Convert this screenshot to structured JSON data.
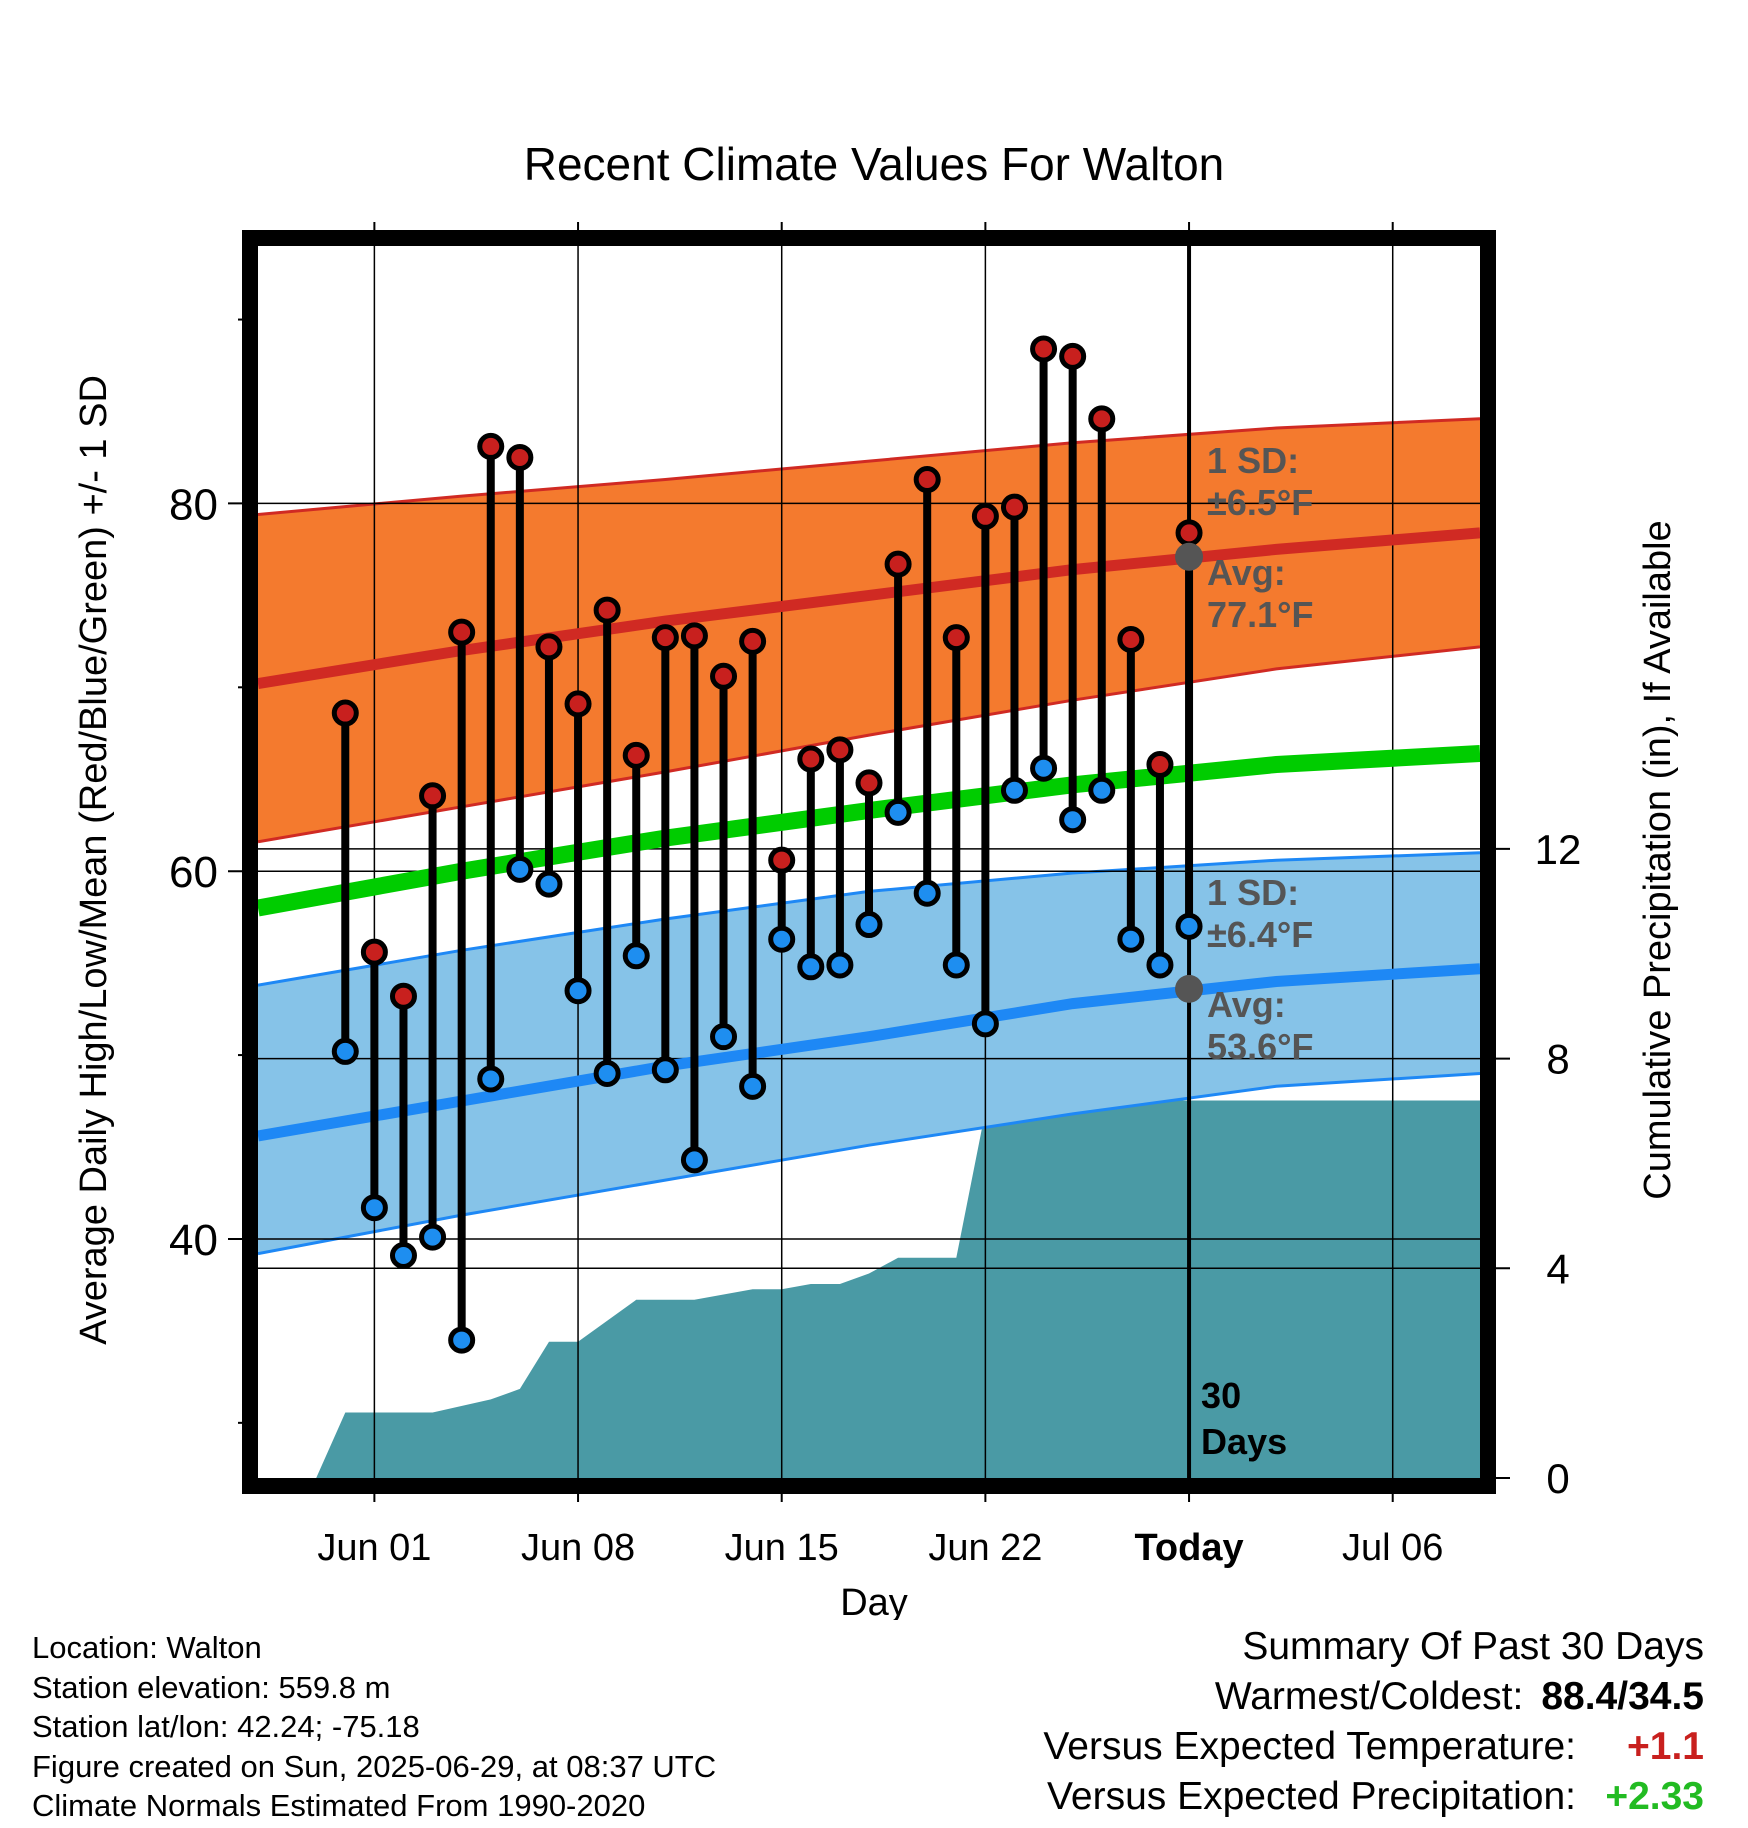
{
  "chart_data": {
    "type": "line",
    "title": "Recent Climate Values For Walton",
    "xlabel": "Day",
    "ylabel": "Average Daily High/Low/Mean (Red/Blue/Green) +/- 1 SD",
    "y2label": "Cumulative Precipitation (in), If Available",
    "x_ticks": [
      "Jun 01",
      "Jun 08",
      "Jun 15",
      "Jun 22",
      "Today",
      "Jul 06"
    ],
    "x_range": [
      "2025-05-28",
      "2025-07-09"
    ],
    "ylim": [
      27,
      94
    ],
    "y_ticks": [
      40,
      60,
      80
    ],
    "y2lim": [
      0,
      23.5
    ],
    "y2_ticks": [
      0,
      4,
      8,
      12
    ],
    "today": "2025-06-29",
    "dates": [
      "2025-05-31",
      "2025-06-01",
      "2025-06-02",
      "2025-06-03",
      "2025-06-04",
      "2025-06-05",
      "2025-06-06",
      "2025-06-07",
      "2025-06-08",
      "2025-06-09",
      "2025-06-10",
      "2025-06-11",
      "2025-06-12",
      "2025-06-13",
      "2025-06-14",
      "2025-06-15",
      "2025-06-16",
      "2025-06-17",
      "2025-06-18",
      "2025-06-19",
      "2025-06-20",
      "2025-06-21",
      "2025-06-22",
      "2025-06-23",
      "2025-06-24",
      "2025-06-25",
      "2025-06-26",
      "2025-06-27",
      "2025-06-28",
      "2025-06-29"
    ],
    "series": [
      {
        "name": "Daily High",
        "color": "#c8201e",
        "values": [
          68.6,
          55.6,
          53.2,
          64.1,
          73.0,
          83.1,
          82.5,
          72.2,
          69.1,
          74.2,
          66.3,
          72.7,
          72.8,
          70.6,
          72.5,
          60.6,
          66.1,
          66.6,
          64.8,
          76.7,
          81.3,
          72.7,
          79.3,
          79.8,
          88.4,
          88.0,
          84.6,
          72.6,
          65.8,
          78.4
        ]
      },
      {
        "name": "Daily Low",
        "color": "#1e8ef0",
        "values": [
          50.2,
          41.7,
          39.1,
          40.1,
          34.5,
          48.7,
          60.1,
          59.3,
          53.5,
          49.0,
          55.4,
          49.2,
          44.3,
          51.0,
          48.3,
          56.3,
          54.8,
          54.9,
          57.1,
          63.2,
          58.8,
          54.9,
          51.7,
          64.4,
          65.6,
          62.8,
          64.4,
          56.3,
          54.9,
          57.0
        ]
      },
      {
        "name": "Normal High",
        "color": "#d02a23",
        "x": [
          "2025-05-28",
          "2025-06-04",
          "2025-06-11",
          "2025-06-18",
          "2025-06-25",
          "2025-07-02",
          "2025-07-09"
        ],
        "values": [
          70.2,
          72.0,
          73.6,
          75.0,
          76.4,
          77.5,
          78.4
        ]
      },
      {
        "name": "Normal High +1 SD",
        "x": [
          "2025-05-28",
          "2025-06-04",
          "2025-06-11",
          "2025-06-18",
          "2025-06-25",
          "2025-07-02",
          "2025-07-09"
        ],
        "values": [
          79.4,
          80.4,
          81.3,
          82.3,
          83.3,
          84.1,
          84.6
        ]
      },
      {
        "name": "Normal High -1 SD",
        "x": [
          "2025-05-28",
          "2025-06-04",
          "2025-06-11",
          "2025-06-18",
          "2025-06-25",
          "2025-07-02",
          "2025-07-09"
        ],
        "values": [
          61.6,
          63.5,
          65.4,
          67.4,
          69.3,
          71.0,
          72.2
        ]
      },
      {
        "name": "Normal Mean",
        "color": "#00cc00",
        "x": [
          "2025-05-28",
          "2025-06-04",
          "2025-06-11",
          "2025-06-18",
          "2025-06-25",
          "2025-07-02",
          "2025-07-09"
        ],
        "values": [
          58.0,
          60.0,
          61.8,
          63.3,
          64.7,
          65.8,
          66.4
        ]
      },
      {
        "name": "Normal Low",
        "color": "#1e88f5",
        "x": [
          "2025-05-28",
          "2025-06-04",
          "2025-06-11",
          "2025-06-18",
          "2025-06-25",
          "2025-07-02",
          "2025-07-09"
        ],
        "values": [
          45.6,
          47.5,
          49.4,
          51.0,
          52.8,
          54.0,
          54.7
        ]
      },
      {
        "name": "Normal Low +1 SD",
        "x": [
          "2025-05-28",
          "2025-06-04",
          "2025-06-11",
          "2025-06-18",
          "2025-06-25",
          "2025-07-02",
          "2025-07-09"
        ],
        "values": [
          53.8,
          55.7,
          57.4,
          58.9,
          59.9,
          60.6,
          61.0
        ]
      },
      {
        "name": "Normal Low -1 SD",
        "x": [
          "2025-05-28",
          "2025-06-04",
          "2025-06-11",
          "2025-06-18",
          "2025-06-25",
          "2025-07-02",
          "2025-07-09"
        ],
        "values": [
          39.2,
          41.3,
          43.2,
          45.1,
          46.8,
          48.3,
          49.0
        ]
      },
      {
        "name": "Cumulative Precipitation",
        "axis": "right",
        "color": "#4a9aa5",
        "x": [
          "2025-05-30",
          "2025-05-31",
          "2025-06-03",
          "2025-06-05",
          "2025-06-06",
          "2025-06-07",
          "2025-06-08",
          "2025-06-10",
          "2025-06-12",
          "2025-06-13",
          "2025-06-14",
          "2025-06-15",
          "2025-06-16",
          "2025-06-17",
          "2025-06-18",
          "2025-06-19",
          "2025-06-20",
          "2025-06-21",
          "2025-06-22",
          "2025-06-26",
          "2025-06-27",
          "2025-07-09"
        ],
        "values": [
          0.0,
          1.25,
          1.25,
          1.5,
          1.7,
          2.6,
          2.6,
          3.4,
          3.4,
          3.5,
          3.6,
          3.6,
          3.7,
          3.7,
          3.9,
          4.2,
          4.2,
          4.2,
          7.0,
          7.0,
          7.2,
          7.2
        ]
      }
    ],
    "annotations": {
      "high_sd_line1": "1 SD:",
      "high_sd_line2": "±6.5°F",
      "high_avg_line1": "Avg:",
      "high_avg_line2": "77.1°F",
      "high_avg_value": 77.1,
      "low_sd_line1": "1 SD:",
      "low_sd_line2": "±6.4°F",
      "low_avg_line1": "Avg:",
      "low_avg_line2": "53.6°F",
      "low_avg_value": 53.6,
      "days_line1": "30",
      "days_line2": "Days"
    },
    "grid": true,
    "colors": {
      "high_band": "#f47a2e",
      "low_band": "#86c3e8",
      "avg_marker": "#555555",
      "annotation_text": "#555555"
    }
  },
  "footer": {
    "location": "Location: Walton",
    "elevation": "Station elevation: 559.8 m",
    "latlon": "Station lat/lon: 42.24; -75.18",
    "created": "Figure created on Sun, 2025-06-29, at 08:37 UTC",
    "normals": "Climate Normals Estimated From 1990-2020"
  },
  "summary": {
    "title": "Summary Of Past 30 Days",
    "warmest_coldest_label": "Warmest/Coldest:",
    "warmest_coldest_value": "88.4/34.5",
    "temp_label": "Versus Expected Temperature:",
    "temp_value": "+1.1",
    "temp_color": "#c8201e",
    "precip_label": "Versus Expected Precipitation:",
    "precip_value": "+2.33",
    "precip_color": "#22bb22"
  }
}
